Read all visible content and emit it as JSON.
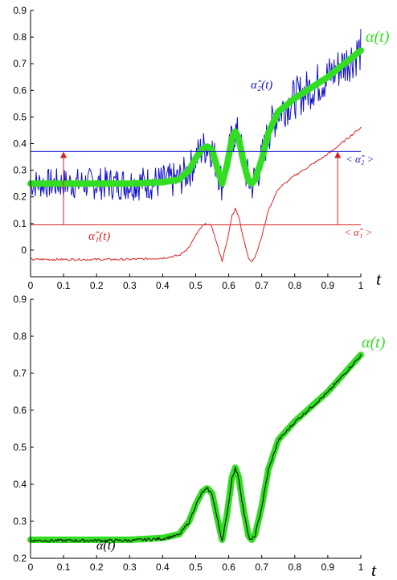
{
  "chart_data": [
    {
      "type": "line",
      "xlabel": "t",
      "xlim": [
        0,
        1
      ],
      "ylim": [
        -0.1,
        0.9
      ],
      "x_ticks": [
        "0",
        "0.1",
        "0.2",
        "0.3",
        "0.4",
        "0.5",
        "0.6",
        "0.7",
        "0.8",
        "0.9",
        "1"
      ],
      "y_ticks": [
        "0",
        "0.1",
        "0.2",
        "0.3",
        "0.4",
        "0.5",
        "0.6",
        "0.7",
        "0.8",
        "0.9"
      ],
      "grid": false,
      "series": [
        {
          "name": "α(t)",
          "color": "#33dd22",
          "x": [
            0,
            0.1,
            0.2,
            0.3,
            0.4,
            0.45,
            0.48,
            0.5,
            0.52,
            0.535,
            0.55,
            0.565,
            0.58,
            0.595,
            0.61,
            0.62,
            0.63,
            0.645,
            0.66,
            0.67,
            0.68,
            0.7,
            0.72,
            0.75,
            0.8,
            0.85,
            0.9,
            0.95,
            1.0
          ],
          "y": [
            0.25,
            0.25,
            0.25,
            0.25,
            0.255,
            0.265,
            0.3,
            0.345,
            0.38,
            0.39,
            0.375,
            0.31,
            0.25,
            0.32,
            0.42,
            0.445,
            0.42,
            0.33,
            0.26,
            0.25,
            0.265,
            0.34,
            0.44,
            0.52,
            0.57,
            0.61,
            0.65,
            0.7,
            0.75
          ]
        },
        {
          "name": "α̂₂(t)",
          "color": "#1111cc",
          "noisy": true,
          "x": [
            0,
            0.1,
            0.2,
            0.3,
            0.4,
            0.45,
            0.48,
            0.5,
            0.52,
            0.535,
            0.55,
            0.565,
            0.58,
            0.595,
            0.61,
            0.62,
            0.63,
            0.645,
            0.66,
            0.67,
            0.68,
            0.7,
            0.72,
            0.75,
            0.8,
            0.85,
            0.9,
            0.95,
            1.0
          ],
          "y": [
            0.25,
            0.25,
            0.25,
            0.25,
            0.255,
            0.265,
            0.3,
            0.345,
            0.38,
            0.39,
            0.375,
            0.31,
            0.25,
            0.32,
            0.42,
            0.445,
            0.42,
            0.33,
            0.26,
            0.25,
            0.265,
            0.34,
            0.44,
            0.52,
            0.57,
            0.61,
            0.65,
            0.7,
            0.75
          ]
        },
        {
          "name": "α̂₁(t)",
          "color": "#dd2222",
          "x": [
            0,
            0.1,
            0.2,
            0.3,
            0.4,
            0.45,
            0.48,
            0.5,
            0.52,
            0.535,
            0.55,
            0.565,
            0.58,
            0.595,
            0.61,
            0.62,
            0.63,
            0.645,
            0.66,
            0.67,
            0.68,
            0.7,
            0.72,
            0.75,
            0.8,
            0.85,
            0.9,
            0.95,
            1.0
          ],
          "y": [
            -0.035,
            -0.035,
            -0.035,
            -0.035,
            -0.03,
            -0.02,
            0.01,
            0.055,
            0.09,
            0.1,
            0.085,
            0.02,
            -0.04,
            0.03,
            0.13,
            0.155,
            0.13,
            0.04,
            -0.03,
            -0.04,
            -0.025,
            0.05,
            0.15,
            0.23,
            0.28,
            0.32,
            0.36,
            0.41,
            0.46
          ]
        }
      ],
      "hlines": [
        {
          "label": "< α̂₂ >",
          "y": 0.37,
          "color": "#1111cc"
        },
        {
          "label": "< α̂₁ >",
          "y": 0.095,
          "color": "#dd2222"
        }
      ],
      "arrows": [
        {
          "x": 0.1,
          "from": 0.095,
          "to": 0.37,
          "color": "#dd2222"
        },
        {
          "x": 0.93,
          "from": 0.095,
          "to": 0.37,
          "color": "#dd2222"
        }
      ]
    },
    {
      "type": "line",
      "xlabel": "t",
      "xlim": [
        0,
        1
      ],
      "ylim": [
        0.2,
        0.9
      ],
      "x_ticks": [
        "0",
        "0.1",
        "0.2",
        "0.3",
        "0.4",
        "0.5",
        "0.6",
        "0.7",
        "0.8",
        "0.9",
        "1"
      ],
      "y_ticks": [
        "0.2",
        "0.3",
        "0.4",
        "0.5",
        "0.6",
        "0.7",
        "0.8",
        "0.9"
      ],
      "grid": false,
      "series": [
        {
          "name": "α(t)",
          "color": "#33dd22",
          "x": [
            0,
            0.1,
            0.2,
            0.3,
            0.4,
            0.45,
            0.48,
            0.5,
            0.52,
            0.535,
            0.55,
            0.565,
            0.58,
            0.595,
            0.61,
            0.62,
            0.63,
            0.645,
            0.66,
            0.67,
            0.68,
            0.7,
            0.72,
            0.75,
            0.8,
            0.85,
            0.9,
            0.95,
            1.0
          ],
          "y": [
            0.25,
            0.25,
            0.25,
            0.25,
            0.255,
            0.265,
            0.3,
            0.345,
            0.38,
            0.39,
            0.375,
            0.31,
            0.25,
            0.32,
            0.42,
            0.445,
            0.42,
            0.33,
            0.26,
            0.25,
            0.265,
            0.34,
            0.44,
            0.52,
            0.57,
            0.61,
            0.65,
            0.7,
            0.75
          ]
        },
        {
          "name": "α̂(t)",
          "color": "#000000",
          "x": [
            0,
            0.1,
            0.2,
            0.3,
            0.4,
            0.45,
            0.48,
            0.5,
            0.52,
            0.535,
            0.55,
            0.565,
            0.58,
            0.595,
            0.61,
            0.62,
            0.63,
            0.645,
            0.66,
            0.67,
            0.68,
            0.7,
            0.72,
            0.75,
            0.8,
            0.85,
            0.9,
            0.95,
            1.0
          ],
          "y": [
            0.248,
            0.248,
            0.248,
            0.248,
            0.253,
            0.263,
            0.298,
            0.343,
            0.378,
            0.388,
            0.373,
            0.308,
            0.248,
            0.318,
            0.418,
            0.443,
            0.418,
            0.328,
            0.258,
            0.248,
            0.263,
            0.338,
            0.438,
            0.518,
            0.568,
            0.608,
            0.648,
            0.698,
            0.748
          ]
        }
      ]
    }
  ]
}
